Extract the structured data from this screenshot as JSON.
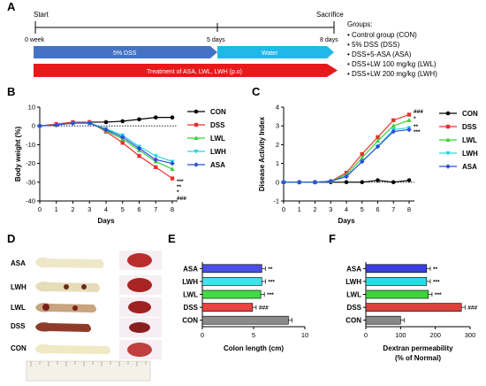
{
  "panel_letters": {
    "A": "A",
    "B": "B",
    "C": "C",
    "D": "D",
    "E": "E",
    "F": "F"
  },
  "timeline": {
    "start": "Start",
    "sacrifice": "Sacrifice",
    "week0": "0 week",
    "days5": "5 days",
    "days8": "8 days",
    "dss_bar": "5% DSS",
    "water_bar": "Water",
    "treatment_bar": "Treatment of ASA, LWL, LWH (p.o)",
    "groups_title": "Groups:",
    "groups": [
      "• Control group (CON)",
      "• 5% DSS (DSS)",
      "• DSS+5-ASA (ASA)",
      "• DSS+LW 100 mg/kg (LWL)",
      "• DSS+LW 200 mg/kg (LWH)"
    ]
  },
  "colors": {
    "CON": "#000000",
    "DSS": "#e8322d",
    "LWL": "#3ccf3c",
    "LWH": "#2ad4e0",
    "ASA": "#2b4fd8",
    "dss_bar": "#4473c4",
    "water_bar": "#1fb8e8",
    "treatment_bar": "#e8191b"
  },
  "chart_data": [
    {
      "type": "line",
      "panel": "B",
      "xlabel": "Days",
      "ylabel": "Body weight (%)",
      "x": [
        0,
        1,
        2,
        3,
        4,
        5,
        6,
        7,
        8
      ],
      "xlim": [
        0,
        8
      ],
      "ylim": [
        -40,
        10
      ],
      "yticks": [
        10,
        0,
        -10,
        -20,
        -30,
        -40
      ],
      "series": [
        {
          "name": "CON",
          "values": [
            0,
            0.5,
            1.5,
            2,
            2,
            2.5,
            3.5,
            4.5,
            4.5
          ]
        },
        {
          "name": "DSS",
          "values": [
            0,
            1,
            2,
            2,
            -3,
            -9,
            -16,
            -22,
            -28
          ]
        },
        {
          "name": "LWL",
          "values": [
            0,
            0.5,
            1.5,
            1.5,
            -2.5,
            -7,
            -13,
            -19,
            -23
          ]
        },
        {
          "name": "LWH",
          "values": [
            0,
            0.5,
            1.5,
            1.5,
            -1.5,
            -5,
            -11,
            -16,
            -19
          ]
        },
        {
          "name": "ASA",
          "values": [
            0,
            0.5,
            1.5,
            1.5,
            -2,
            -6,
            -12,
            -18,
            -20
          ]
        }
      ],
      "annotations": [
        "***",
        "**",
        "*",
        "###"
      ],
      "legend": [
        "CON",
        "DSS",
        "LWL",
        "LWH",
        "ASA"
      ]
    },
    {
      "type": "line",
      "panel": "C",
      "xlabel": "Days",
      "ylabel": "Disease Activity Index",
      "x": [
        0,
        1,
        2,
        3,
        4,
        5,
        6,
        7,
        8
      ],
      "xlim": [
        0,
        8
      ],
      "ylim": [
        -1,
        4
      ],
      "yticks": [
        4,
        3,
        2,
        1,
        0,
        -1
      ],
      "series": [
        {
          "name": "CON",
          "values": [
            0,
            0,
            0,
            0,
            0,
            0,
            0.1,
            0,
            0.1
          ]
        },
        {
          "name": "DSS",
          "values": [
            0,
            0,
            0,
            0.05,
            0.5,
            1.5,
            2.4,
            3.3,
            3.6
          ]
        },
        {
          "name": "LWL",
          "values": [
            0,
            0,
            0,
            0.05,
            0.4,
            1.3,
            2.2,
            3.0,
            3.3
          ]
        },
        {
          "name": "LWH",
          "values": [
            0,
            0,
            0,
            0.05,
            0.3,
            1.1,
            1.9,
            2.8,
            2.9
          ]
        },
        {
          "name": "ASA",
          "values": [
            0,
            0,
            0,
            0.05,
            0.3,
            1.1,
            1.9,
            2.7,
            2.8
          ]
        }
      ],
      "annotations": [
        "###",
        "*",
        "**",
        "***"
      ],
      "legend": [
        "CON",
        "DSS",
        "LWL",
        "LWH",
        "ASA"
      ]
    },
    {
      "type": "bar",
      "panel": "E",
      "orientation": "horizontal",
      "xlabel": "Colon length (cm)",
      "categories": [
        "ASA",
        "LWH",
        "LWL",
        "DSS",
        "CON"
      ],
      "values": [
        5.8,
        5.8,
        5.7,
        4.9,
        8.4
      ],
      "xlim": [
        0,
        10
      ],
      "xticks": [
        0,
        5,
        10
      ],
      "annotations": [
        "**",
        "***",
        "***",
        "###",
        ""
      ]
    },
    {
      "type": "bar",
      "panel": "F",
      "orientation": "horizontal",
      "xlabel": "Dextran permeability",
      "xlabel2": "(% of Normal)",
      "categories": [
        "ASA",
        "LWH",
        "LWL",
        "DSS",
        "CON"
      ],
      "values": [
        175,
        175,
        180,
        275,
        100
      ],
      "xlim": [
        0,
        300
      ],
      "xticks": [
        0,
        100,
        200,
        300
      ],
      "annotations": [
        "**",
        "***",
        "***",
        "###",
        ""
      ]
    }
  ],
  "panel_d": {
    "labels": [
      "ASA",
      "LWH",
      "LWL",
      "DSS",
      "CON"
    ]
  }
}
